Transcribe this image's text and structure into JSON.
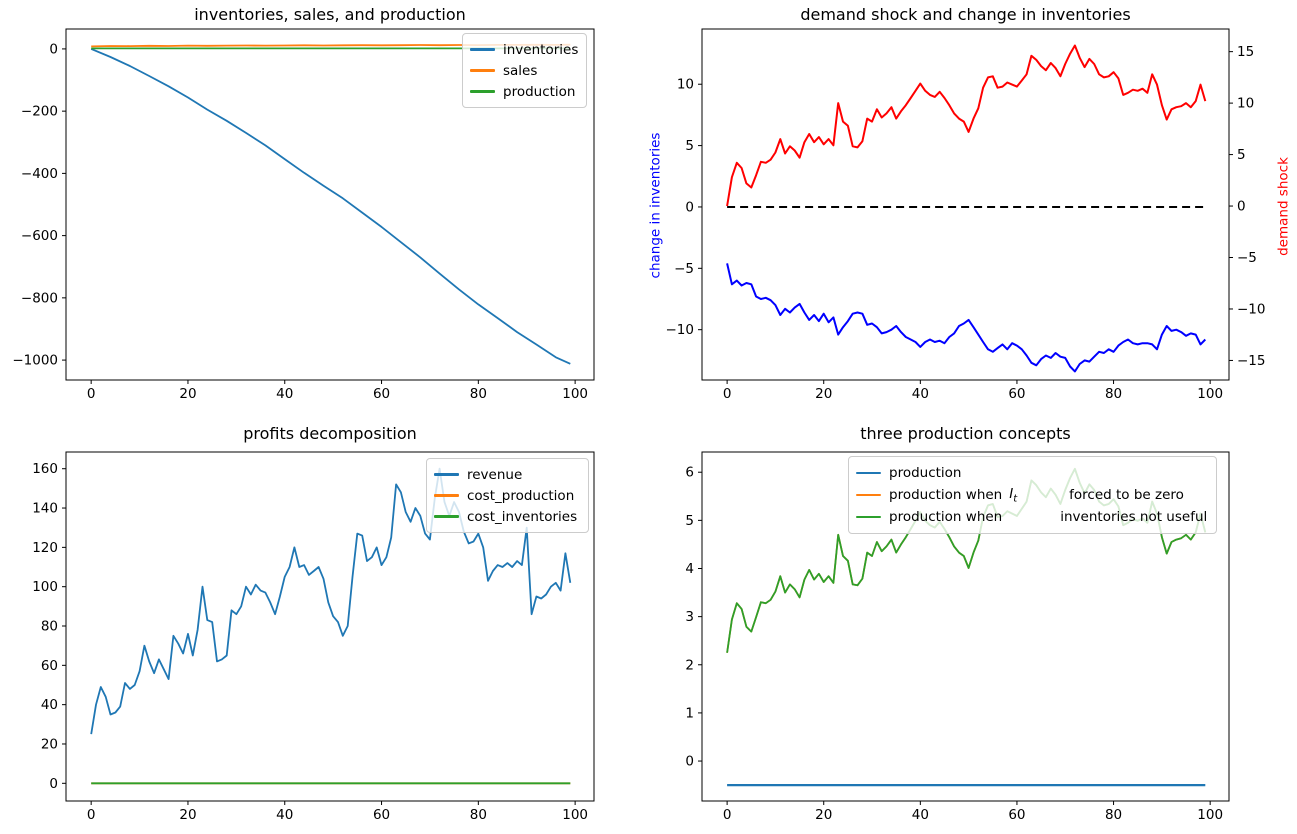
{
  "figure": {
    "background": "#ffffff"
  },
  "chart_data": [
    {
      "type": "line",
      "title": "inventories, sales, and production",
      "xlabel": "",
      "ylabel": "",
      "grid": false,
      "legend_position": "upper right",
      "xlim": [
        -5.2,
        103.9
      ],
      "ylim": [
        -1064,
        64
      ],
      "xticks": [
        0,
        20,
        40,
        60,
        80,
        100
      ],
      "yticks": [
        0,
        -200,
        -400,
        -600,
        -800,
        -1000
      ],
      "series": [
        {
          "name": "inventories",
          "color": "#1f77b4",
          "lw": 1.8,
          "x": [
            0,
            4,
            8,
            12,
            16,
            20,
            24,
            28,
            32,
            36,
            40,
            44,
            48,
            52,
            56,
            60,
            64,
            68,
            72,
            76,
            80,
            84,
            88,
            92,
            96,
            99
          ],
          "y": [
            0,
            -26,
            -55,
            -87,
            -120,
            -156,
            -195,
            -231,
            -270,
            -310,
            -354,
            -398,
            -440,
            -480,
            -526,
            -572,
            -621,
            -670,
            -722,
            -773,
            -821,
            -865,
            -910,
            -950,
            -991,
            -1012
          ]
        },
        {
          "name": "sales",
          "color": "#ff7f0e",
          "lw": 1.8,
          "x": [
            0,
            4,
            8,
            12,
            16,
            20,
            24,
            28,
            32,
            36,
            40,
            44,
            48,
            52,
            56,
            60,
            64,
            68,
            72,
            76,
            80,
            84,
            88,
            92,
            96,
            99
          ],
          "y": [
            8,
            9.5,
            9,
            10,
            9.5,
            10.5,
            10,
            10.5,
            11,
            10.5,
            11,
            11.5,
            11,
            11.5,
            12,
            11.5,
            12,
            12.5,
            12,
            12.5,
            12.2,
            12.8,
            13,
            13.2,
            13,
            13.5
          ]
        },
        {
          "name": "production",
          "color": "#2ca02c",
          "lw": 1.8,
          "x": [
            0,
            99
          ],
          "y": [
            1.5,
            1.5
          ]
        }
      ]
    },
    {
      "type": "line",
      "title": "demand shock and change in inventories",
      "ylabel_left": "change in inventories",
      "ylabel_left_color": "#0000ff",
      "ylabel_right": "demand shock",
      "ylabel_right_color": "#ff0000",
      "grid": false,
      "legend_position": "none",
      "xlim": [
        -5.2,
        103.9
      ],
      "ylim": [
        -14.1,
        14.5
      ],
      "ylim_right": [
        -16.9,
        17.2
      ],
      "xticks": [
        0,
        20,
        40,
        60,
        80,
        100
      ],
      "yticks": [
        10,
        5,
        0,
        -5,
        -10
      ],
      "yticks_right": [
        15,
        10,
        5,
        0,
        -5,
        -10,
        -15
      ],
      "series": [
        {
          "name": "zero line",
          "color": "#000000",
          "lw": 2,
          "dash": true,
          "x": [
            0,
            99
          ],
          "y": [
            0,
            0
          ]
        },
        {
          "name": "change in inventories",
          "color": "#0000ff",
          "lw": 2,
          "y": [
            -4.6,
            -6.3,
            -6.0,
            -6.4,
            -6.2,
            -6.3,
            -7.3,
            -7.5,
            -7.4,
            -7.6,
            -8.0,
            -8.8,
            -8.3,
            -8.6,
            -8.2,
            -7.9,
            -8.6,
            -9.2,
            -8.8,
            -9.3,
            -8.7,
            -9.4,
            -9.0,
            -10.4,
            -9.8,
            -9.3,
            -8.7,
            -8.6,
            -8.7,
            -9.6,
            -9.5,
            -9.8,
            -10.3,
            -10.2,
            -10.0,
            -9.7,
            -10.2,
            -10.6,
            -10.8,
            -11.0,
            -11.4,
            -11.0,
            -10.8,
            -11.0,
            -10.9,
            -11.1,
            -10.6,
            -10.3,
            -9.7,
            -9.5,
            -9.2,
            -9.8,
            -10.4,
            -11.0,
            -11.6,
            -11.8,
            -11.5,
            -11.2,
            -11.6,
            -11.1,
            -11.3,
            -11.6,
            -12.1,
            -12.7,
            -12.9,
            -12.4,
            -12.1,
            -12.3,
            -11.9,
            -12.2,
            -12.3,
            -13.0,
            -13.4,
            -12.8,
            -12.5,
            -12.6,
            -12.2,
            -11.8,
            -11.9,
            -11.6,
            -11.8,
            -11.3,
            -11.0,
            -10.8,
            -11.1,
            -11.2,
            -11.1,
            -11.1,
            -11.2,
            -11.6,
            -10.4,
            -9.7,
            -10.1,
            -10.0,
            -10.2,
            -10.5,
            -10.3,
            -10.4,
            -11.2,
            -10.8
          ]
        },
        {
          "name": "demand shock",
          "color": "#ff0000",
          "lw": 2,
          "axis": "right",
          "y": [
            0,
            2.8,
            4.2,
            3.7,
            2.2,
            1.8,
            3.0,
            4.3,
            4.2,
            4.5,
            5.2,
            6.5,
            5.1,
            5.8,
            5.4,
            4.7,
            6.2,
            7.0,
            6.2,
            6.7,
            6.0,
            6.5,
            5.9,
            10.0,
            8.2,
            7.8,
            5.8,
            5.7,
            6.3,
            8.5,
            8.2,
            9.4,
            8.6,
            9.0,
            9.6,
            8.5,
            9.2,
            9.8,
            10.5,
            11.2,
            11.9,
            11.2,
            10.8,
            10.6,
            11.1,
            10.5,
            9.8,
            9.0,
            8.5,
            8.2,
            7.2,
            8.5,
            9.5,
            11.5,
            12.5,
            12.6,
            11.5,
            11.6,
            12.0,
            11.8,
            11.6,
            12.2,
            12.8,
            14.6,
            14.2,
            13.6,
            13.2,
            13.9,
            13.4,
            12.6,
            13.8,
            14.8,
            15.6,
            14.4,
            13.5,
            14.3,
            13.8,
            12.8,
            12.5,
            12.6,
            13.0,
            12.4,
            10.8,
            11.0,
            11.3,
            11.2,
            11.4,
            11.0,
            12.8,
            11.8,
            9.8,
            8.4,
            9.4,
            9.6,
            9.7,
            10.0,
            9.6,
            10.2,
            11.8,
            10.2
          ]
        }
      ]
    },
    {
      "type": "line",
      "title": "profits decomposition",
      "grid": false,
      "legend_position": "upper right",
      "xlim": [
        -5.2,
        103.9
      ],
      "ylim": [
        -9,
        168.5
      ],
      "xticks": [
        0,
        20,
        40,
        60,
        80,
        100
      ],
      "yticks": [
        0,
        20,
        40,
        60,
        80,
        100,
        120,
        140,
        160
      ],
      "series": [
        {
          "name": "revenue",
          "color": "#1f77b4",
          "lw": 1.8,
          "y": [
            25,
            40,
            49,
            44,
            35,
            36,
            39,
            51,
            48,
            50,
            57,
            70,
            62,
            56,
            63,
            58,
            53,
            75,
            71,
            66,
            76,
            65,
            78,
            100,
            83,
            82,
            62,
            63,
            65,
            88,
            86,
            90,
            100,
            96,
            101,
            98,
            97,
            92,
            86,
            95,
            105,
            110,
            120,
            110,
            111,
            106,
            108,
            110,
            104,
            92,
            85,
            82,
            75,
            80,
            105,
            127,
            126,
            113,
            115,
            120,
            111,
            115,
            125,
            152,
            148,
            138,
            133,
            140,
            136,
            127,
            124,
            145,
            160,
            143,
            136,
            143,
            138,
            128,
            122,
            123,
            127,
            120,
            103,
            108,
            111,
            110,
            112,
            110,
            113,
            111,
            130,
            86,
            95,
            94,
            96,
            100,
            102,
            98,
            117,
            102
          ]
        },
        {
          "name": "cost_production",
          "color": "#ff7f0e",
          "lw": 1.8,
          "x": [
            0,
            99
          ],
          "y": [
            0,
            0
          ]
        },
        {
          "name": "cost_inventories",
          "color": "#2ca02c",
          "lw": 1.8,
          "x": [
            0,
            99
          ],
          "y": [
            0,
            0
          ]
        }
      ]
    },
    {
      "type": "line",
      "title": "three production concepts",
      "grid": false,
      "legend_position": "upper center",
      "xlim": [
        -5.2,
        103.9
      ],
      "ylim": [
        -0.83,
        6.42
      ],
      "xticks": [
        0,
        20,
        40,
        60,
        80,
        100
      ],
      "yticks": [
        0,
        1,
        2,
        3,
        4,
        5,
        6
      ],
      "legend": {
        "rows": [
          {
            "pre": "production",
            "post": ""
          },
          {
            "pre": "production when",
            "math_var": "I",
            "math_sub": "t",
            "post": "forced to be zero"
          },
          {
            "pre": "production when",
            "post": "inventories not useful"
          }
        ]
      },
      "series": [
        {
          "name": "production",
          "color": "#1f77b4",
          "lw": 2.2,
          "x": [
            0,
            99
          ],
          "y": [
            -0.5,
            -0.5
          ]
        },
        {
          "name": "production when I_t forced to be zero",
          "color": "#ff7f0e",
          "lw": 1.8,
          "y": [
            2.25,
            2.94,
            3.28,
            3.16,
            2.79,
            2.69,
            2.99,
            3.3,
            3.28,
            3.35,
            3.52,
            3.84,
            3.5,
            3.67,
            3.57,
            3.4,
            3.77,
            3.97,
            3.77,
            3.89,
            3.72,
            3.84,
            3.7,
            4.7,
            4.26,
            4.16,
            3.67,
            3.65,
            3.79,
            4.33,
            4.26,
            4.55,
            4.36,
            4.46,
            4.6,
            4.33,
            4.5,
            4.65,
            4.82,
            4.99,
            5.17,
            4.99,
            4.9,
            4.85,
            4.97,
            4.82,
            4.65,
            4.46,
            4.33,
            4.26,
            4.01,
            4.33,
            4.58,
            5.07,
            5.31,
            5.34,
            5.07,
            5.09,
            5.19,
            5.14,
            5.09,
            5.24,
            5.39,
            5.83,
            5.73,
            5.58,
            5.48,
            5.66,
            5.53,
            5.34,
            5.63,
            5.88,
            6.07,
            5.78,
            5.56,
            5.75,
            5.63,
            5.39,
            5.31,
            5.34,
            5.44,
            5.29,
            4.9,
            4.95,
            5.02,
            4.99,
            5.04,
            4.95,
            5.39,
            5.14,
            4.65,
            4.31,
            4.55,
            4.6,
            4.63,
            4.7,
            4.6,
            4.75,
            5.14,
            4.75
          ]
        },
        {
          "name": "production when inventories not useful",
          "color": "#2ca02c",
          "lw": 1.8,
          "y": [
            2.25,
            2.94,
            3.28,
            3.16,
            2.79,
            2.69,
            2.99,
            3.3,
            3.28,
            3.35,
            3.52,
            3.84,
            3.5,
            3.67,
            3.57,
            3.4,
            3.77,
            3.97,
            3.77,
            3.89,
            3.72,
            3.84,
            3.7,
            4.7,
            4.26,
            4.16,
            3.67,
            3.65,
            3.79,
            4.33,
            4.26,
            4.55,
            4.36,
            4.46,
            4.6,
            4.33,
            4.5,
            4.65,
            4.82,
            4.99,
            5.17,
            4.99,
            4.9,
            4.85,
            4.97,
            4.82,
            4.65,
            4.46,
            4.33,
            4.26,
            4.01,
            4.33,
            4.58,
            5.07,
            5.31,
            5.34,
            5.07,
            5.09,
            5.19,
            5.14,
            5.09,
            5.24,
            5.39,
            5.83,
            5.73,
            5.58,
            5.48,
            5.66,
            5.53,
            5.34,
            5.63,
            5.88,
            6.07,
            5.78,
            5.56,
            5.75,
            5.63,
            5.39,
            5.31,
            5.34,
            5.44,
            5.29,
            4.9,
            4.95,
            5.02,
            4.99,
            5.04,
            4.95,
            5.39,
            5.14,
            4.65,
            4.31,
            4.55,
            4.6,
            4.63,
            4.7,
            4.6,
            4.75,
            5.14,
            4.75
          ]
        }
      ]
    }
  ]
}
